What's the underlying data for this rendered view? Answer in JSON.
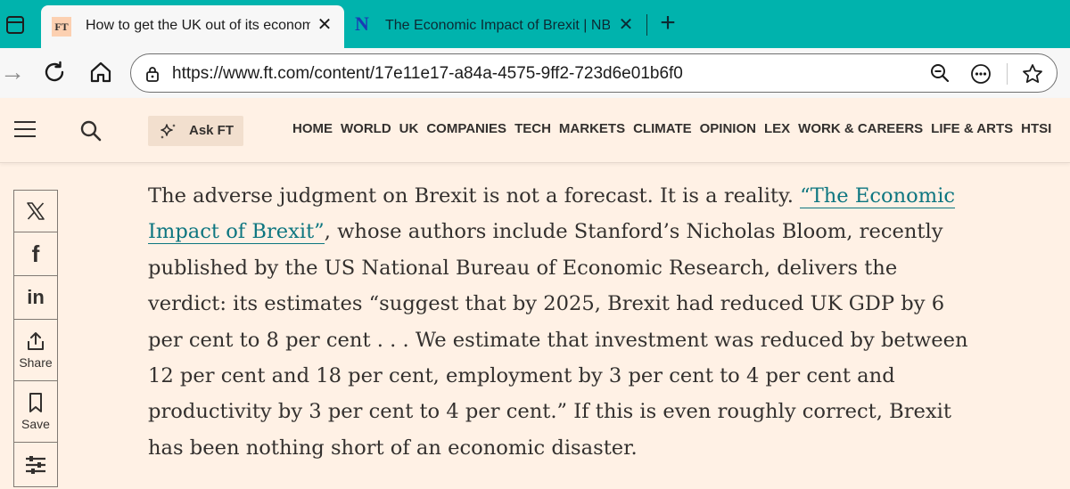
{
  "browser": {
    "tabs": [
      {
        "favicon": "FT",
        "title": "How to get the UK out of its economic hole",
        "active": true
      },
      {
        "favicon": "N",
        "title": "The Economic Impact of Brexit | NBER",
        "active": false
      }
    ],
    "url": "https://www.ft.com/content/17e11e17-a84a-4575-9ff2-723d6e01b6f0",
    "tab_close_glyph": "✕",
    "new_tab_glyph": "+",
    "back_glyph": "→"
  },
  "header": {
    "ask_label": "Ask FT",
    "nav": [
      "HOME",
      "WORLD",
      "UK",
      "COMPANIES",
      "TECH",
      "MARKETS",
      "CLIMATE",
      "OPINION",
      "LEX",
      "WORK & CAREERS",
      "LIFE & ARTS",
      "HTSI"
    ]
  },
  "share_rail": {
    "x_glyph": "𝕏",
    "f_glyph": "f",
    "in_glyph": "in",
    "share_label": "Share",
    "save_label": "Save"
  },
  "article": {
    "lines": [
      {
        "pre": "The adverse judgment on Brexit is not a forecast. It is a reality. ",
        "link": "“The Economic",
        "post": ""
      },
      {
        "pre": "",
        "link": "Impact of Brexit”",
        "post": ", whose authors include Stanford’s Nicholas Bloom, recently"
      },
      {
        "pre": "published by the US National Bureau of Economic Research, delivers the",
        "link": "",
        "post": ""
      },
      {
        "pre": "verdict: its estimates “suggest that by 2025, Brexit had reduced UK GDP by 6",
        "link": "",
        "post": ""
      },
      {
        "pre": "per cent to 8 per cent . . . We estimate that investment was reduced by between",
        "link": "",
        "post": ""
      },
      {
        "pre": "12 per cent and 18 per cent, employment by 3 per cent to 4 per cent and",
        "link": "",
        "post": ""
      },
      {
        "pre": "productivity by 3 per cent to 4 per cent.” If this is even roughly correct, Brexit",
        "link": "",
        "post": ""
      },
      {
        "pre": "has been nothing short of an economic disaster.",
        "link": "",
        "post": ""
      }
    ]
  },
  "colors": {
    "tabstrip": "#00b3ad",
    "page_bg": "#fff1e5",
    "link": "#0d7680",
    "text": "#33302e"
  }
}
